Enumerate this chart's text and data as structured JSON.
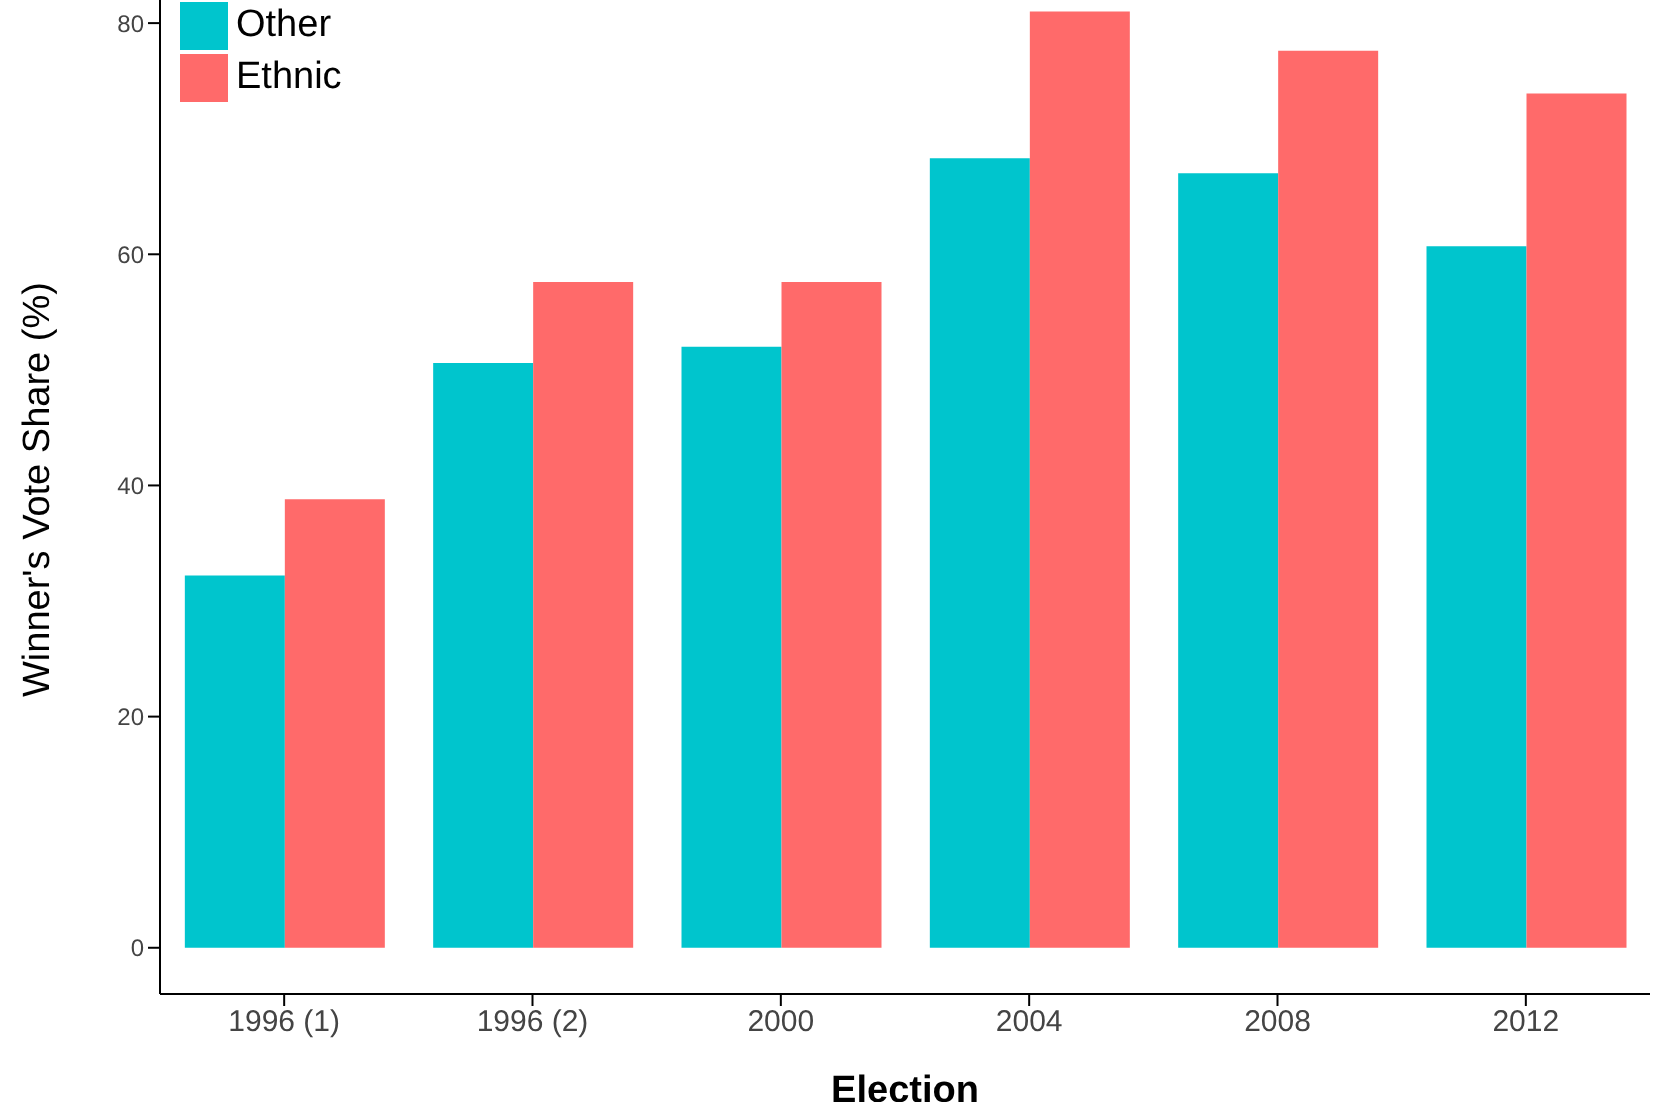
{
  "chart_data": {
    "type": "bar",
    "xlabel": "Election",
    "ylabel": "Winner's Vote Share (%)",
    "categories": [
      "1996 (1)",
      "1996 (2)",
      "2000",
      "2004",
      "2008",
      "2012"
    ],
    "series": [
      {
        "name": "Other",
        "color": "#00c5cd",
        "values": [
          32.2,
          50.6,
          52.0,
          68.3,
          67.0,
          60.7
        ]
      },
      {
        "name": "Ethnic",
        "color": "#ff6a6a",
        "values": [
          38.8,
          57.6,
          57.6,
          81.0,
          77.6,
          73.9
        ]
      }
    ],
    "ylim": [
      -4,
      82
    ],
    "yticks": [
      0,
      20,
      40,
      60,
      80
    ],
    "legend": "top left"
  }
}
